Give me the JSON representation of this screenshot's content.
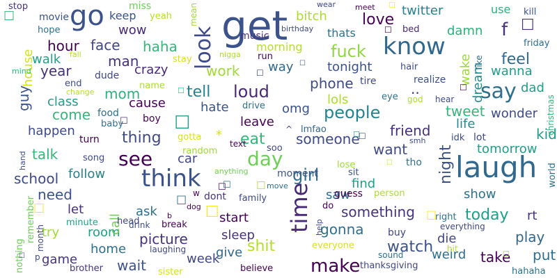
{
  "words": [
    {
      "text": "get",
      "color": "#3b528b"
    },
    {
      "text": "laugh",
      "color": "#31688e"
    },
    {
      "text": "go",
      "color": "#3b528b"
    },
    {
      "text": "know",
      "color": "#31688e"
    },
    {
      "text": "think",
      "color": "#3b528b"
    },
    {
      "text": "see",
      "color": "#440154"
    },
    {
      "text": "make",
      "color": "#440154"
    },
    {
      "text": "time",
      "color": "#482878"
    },
    {
      "text": "look",
      "color": "#3e4a89"
    },
    {
      "text": "people",
      "color": "#26828e"
    },
    {
      "text": "say",
      "color": "#2d708e"
    },
    {
      "text": "day",
      "color": "#6ece58"
    },
    {
      "text": "fuck",
      "color": "#8fd744"
    },
    {
      "text": "loud",
      "color": "#482878"
    },
    {
      "text": "shit",
      "color": "#b5de2b"
    },
    {
      "text": "girl",
      "color": "#2d708e"
    },
    {
      "text": "watch",
      "color": "#3b528b"
    },
    {
      "text": "night",
      "color": "#3b528b"
    },
    {
      "text": "tell",
      "color": "#26828e"
    },
    {
      "text": "thing",
      "color": "#3e4a89"
    },
    {
      "text": "today",
      "color": "#1f9e89"
    },
    {
      "text": "gonna",
      "color": "#2d708e"
    },
    {
      "text": "talk",
      "color": "#35b779"
    },
    {
      "text": "wait",
      "color": "#3b528b"
    },
    {
      "text": "feel",
      "color": "#31688e"
    },
    {
      "text": "love",
      "color": "#440154"
    },
    {
      "text": "school",
      "color": "#3e4a89"
    },
    {
      "text": "tweet",
      "color": "#35b779"
    },
    {
      "text": "something",
      "color": "#46327e"
    },
    {
      "text": "work",
      "color": "#a0da39"
    },
    {
      "text": "phone",
      "color": "#3e4a89"
    },
    {
      "text": "someone",
      "color": "#3e4a89"
    },
    {
      "text": "picture",
      "color": "#46327e"
    },
    {
      "text": "take",
      "color": "#440154"
    },
    {
      "text": "put",
      "color": "#2d708e"
    },
    {
      "text": "play",
      "color": "#31688e"
    },
    {
      "text": "friend",
      "color": "#46327e"
    },
    {
      "text": "want",
      "color": "#3e4a89"
    },
    {
      "text": "need",
      "color": "#3b528b"
    },
    {
      "text": "come",
      "color": "#35b779"
    },
    {
      "text": "guy",
      "color": "#3b528b"
    },
    {
      "text": "year",
      "color": "#46327e"
    },
    {
      "text": "mom",
      "color": "#2db27d"
    },
    {
      "text": "haha",
      "color": "#35b779"
    },
    {
      "text": "hour",
      "color": "#440154"
    },
    {
      "text": "face",
      "color": "#404688"
    },
    {
      "text": "man",
      "color": "#46327e"
    },
    {
      "text": "crazy",
      "color": "#482878"
    },
    {
      "text": "wow",
      "color": "#482878"
    },
    {
      "text": "bitch",
      "color": "#addc30"
    },
    {
      "text": "twitter",
      "color": "#26828e"
    },
    {
      "text": "damn",
      "color": "#2db27d"
    },
    {
      "text": "wake",
      "color": "#9bd93c"
    },
    {
      "text": "dream",
      "color": "#238a8d"
    },
    {
      "text": "wanna",
      "color": "#1f9e89"
    },
    {
      "text": "tonight",
      "color": "#3b528b"
    },
    {
      "text": "morning",
      "color": "#b5de2b"
    },
    {
      "text": "omg",
      "color": "#3b528b"
    },
    {
      "text": "hate",
      "color": "#3b528b"
    },
    {
      "text": "cause",
      "color": "#440154"
    },
    {
      "text": "leave",
      "color": "#440154"
    },
    {
      "text": "eat",
      "color": "#35b779"
    },
    {
      "text": "lols",
      "color": "#addc30"
    },
    {
      "text": "life",
      "color": "#238a8d"
    },
    {
      "text": "kid",
      "color": "#1f9e89"
    },
    {
      "text": "tomorrow",
      "color": "#1f9e89"
    },
    {
      "text": "wonder",
      "color": "#3e4a89"
    },
    {
      "text": "dad",
      "color": "#1f9e89"
    },
    {
      "text": "happen",
      "color": "#3e4a89"
    },
    {
      "text": "class",
      "color": "#1f9e89"
    },
    {
      "text": "walk",
      "color": "#1fa188"
    },
    {
      "text": "house",
      "color": "#d2e21b"
    },
    {
      "text": "find",
      "color": "#1f9e89"
    },
    {
      "text": "saw",
      "color": "#2d708e"
    },
    {
      "text": "start",
      "color": "#440154"
    },
    {
      "text": "sleep",
      "color": "#46327e"
    },
    {
      "text": "give",
      "color": "#31688e"
    },
    {
      "text": "die",
      "color": "#404688"
    },
    {
      "text": "show",
      "color": "#2d708e"
    },
    {
      "text": "rt",
      "color": "#46327e"
    },
    {
      "text": "room",
      "color": "#1fa188"
    },
    {
      "text": "try",
      "color": "#a0da39"
    },
    {
      "text": "let",
      "color": "#46327e"
    },
    {
      "text": "ask",
      "color": "#2d708e"
    },
    {
      "text": "call",
      "color": "#6ece58"
    },
    {
      "text": "follow",
      "color": "#26828e"
    },
    {
      "text": "home",
      "color": "#2d708e"
    },
    {
      "text": "week",
      "color": "#404688"
    },
    {
      "text": "game",
      "color": "#46327e"
    },
    {
      "text": "weird",
      "color": "#2d708e"
    },
    {
      "text": "car",
      "color": "#404688"
    },
    {
      "text": "way",
      "color": "#31688e"
    },
    {
      "text": "keep",
      "color": "#3b528b"
    },
    {
      "text": "movie",
      "color": "#3b528b"
    },
    {
      "text": "use",
      "color": "#2db27d"
    },
    {
      "text": "thats",
      "color": "#2d708e"
    },
    {
      "text": "music",
      "color": "#46327e"
    },
    {
      "text": "stop",
      "color": "#46327e"
    },
    {
      "text": "hope",
      "color": "#2d708e"
    },
    {
      "text": "miss",
      "color": "#6ece58"
    },
    {
      "text": "yeah",
      "color": "#b5de2b"
    },
    {
      "text": "mean",
      "color": "#a0da39"
    },
    {
      "text": "wear",
      "color": "#404688"
    },
    {
      "text": "meet",
      "color": "#440154"
    },
    {
      "text": "kill",
      "color": "#3b528b"
    },
    {
      "text": "bed",
      "color": "#482878"
    },
    {
      "text": "birthday",
      "color": "#3e4a89"
    },
    {
      "text": "friday",
      "color": "#2d708e"
    },
    {
      "text": "nigga",
      "color": "#addc30"
    },
    {
      "text": "run",
      "color": "#440154"
    },
    {
      "text": "stay",
      "color": "#d8e219"
    },
    {
      "text": "fall",
      "color": "#b5de2b"
    },
    {
      "text": "mind",
      "color": "#35b779"
    },
    {
      "text": "dude",
      "color": "#404688"
    },
    {
      "text": "end",
      "color": "#3e4a89"
    },
    {
      "text": "change",
      "color": "#b5de2b"
    },
    {
      "text": "name",
      "color": "#addc30"
    },
    {
      "text": "hair",
      "color": "#3e4a89"
    },
    {
      "text": "tire",
      "color": "#3e4a89"
    },
    {
      "text": "realize",
      "color": "#3b528b"
    },
    {
      "text": "like",
      "color": "#2d708e"
    },
    {
      "text": "eye",
      "color": "#2d708e"
    },
    {
      "text": "god",
      "color": "#addc30"
    },
    {
      "text": "hear",
      "color": "#3e4a89"
    },
    {
      "text": "christmas",
      "color": "#35b779"
    },
    {
      "text": "drive",
      "color": "#2d708e"
    },
    {
      "text": "food",
      "color": "#2d708e"
    },
    {
      "text": "baby",
      "color": "#2d708e"
    },
    {
      "text": "boy",
      "color": "#440154"
    },
    {
      "text": "turn",
      "color": "#440154"
    },
    {
      "text": "song",
      "color": "#3e4a89"
    },
    {
      "text": "gotta",
      "color": "#d8e219"
    },
    {
      "text": "random",
      "color": "#a0da39"
    },
    {
      "text": "text",
      "color": "#440154"
    },
    {
      "text": "soo",
      "color": "#404688"
    },
    {
      "text": "lmfao",
      "color": "#31688e"
    },
    {
      "text": "smh",
      "color": "#3e4a89"
    },
    {
      "text": "idk",
      "color": "#3e4a89"
    },
    {
      "text": "lot",
      "color": "#404688"
    },
    {
      "text": "sit",
      "color": "#3b528b"
    },
    {
      "text": "tho",
      "color": "#2d708e"
    },
    {
      "text": "lose",
      "color": "#a0da39"
    },
    {
      "text": "anything",
      "color": "#6ece58"
    },
    {
      "text": "moment",
      "color": "#3b528b"
    },
    {
      "text": "guess",
      "color": "#440154"
    },
    {
      "text": "person",
      "color": "#addc30"
    },
    {
      "text": "right",
      "color": "#2d708e"
    },
    {
      "text": "world",
      "color": "#2d708e"
    },
    {
      "text": "hand",
      "color": "#3e4a89"
    },
    {
      "text": "head",
      "color": "#404688"
    },
    {
      "text": "dog",
      "color": "#440154"
    },
    {
      "text": "dont",
      "color": "#46327e"
    },
    {
      "text": "family",
      "color": "#404688"
    },
    {
      "text": "move",
      "color": "#2d708e"
    },
    {
      "text": "do",
      "color": "#440154"
    },
    {
      "text": "remember",
      "color": "#6ece58"
    },
    {
      "text": "minute",
      "color": "#1fa188"
    },
    {
      "text": "month",
      "color": "#404688"
    },
    {
      "text": "drink",
      "color": "#3b528b"
    },
    {
      "text": "break",
      "color": "#440154"
    },
    {
      "text": "help",
      "color": "#404688"
    },
    {
      "text": "buy",
      "color": "#404688"
    },
    {
      "text": "everything",
      "color": "#404688"
    },
    {
      "text": "nothing",
      "color": "#6ece58"
    },
    {
      "text": "laughing",
      "color": "#404688"
    },
    {
      "text": "everyone",
      "color": "#d8e219"
    },
    {
      "text": "sound",
      "color": "#2d708e"
    },
    {
      "text": "hit",
      "color": "#b5de2b"
    },
    {
      "text": "brother",
      "color": "#46327e"
    },
    {
      "text": "sister",
      "color": "#d2e21b"
    },
    {
      "text": "believe",
      "color": "#440154"
    },
    {
      "text": "thanksgiving",
      "color": "#404688"
    },
    {
      "text": "hahaha",
      "color": "#2d708e"
    },
    {
      "text": "f",
      "color": "#46327e"
    },
    {
      "text": "b",
      "color": "#440154"
    },
    {
      "text": "w",
      "color": "#440154"
    },
    {
      "text": "p",
      "color": "#3e4a89"
    },
    {
      "text": "*",
      "color": "#d8e219"
    },
    {
      "text": "^",
      "color": "#404688"
    },
    {
      "text": "..",
      "color": "#46327e"
    },
    {
      "text": "☐",
      "color": "#46327e"
    },
    {
      "text": "☐",
      "color": "#35b779"
    },
    {
      "text": "☐",
      "color": "#fde725"
    },
    {
      "text": "☐",
      "color": "#440154"
    },
    {
      "text": "☐",
      "color": "#1fa188"
    },
    {
      "text": "☐",
      "color": "#46327e"
    },
    {
      "text": "☐",
      "color": "#fde725"
    },
    {
      "text": "☐",
      "color": "#3e4a89"
    },
    {
      "text": "☐",
      "color": "#35b779"
    },
    {
      "text": "☐",
      "color": "#1f9e89"
    },
    {
      "text": "☐",
      "color": "#440154"
    },
    {
      "text": "☐",
      "color": "#addc30"
    },
    {
      "text": "☐",
      "color": "#404688"
    },
    {
      "text": "☐",
      "color": "#2d708e"
    },
    {
      "text": "☐",
      "color": "#fde725"
    },
    {
      "text": "☐",
      "color": "#3e4a89"
    },
    {
      "text": "☐",
      "color": "#a0da39"
    },
    {
      "text": "☐",
      "color": "#440154"
    },
    {
      "text": "☐",
      "color": "#fde725"
    },
    {
      "text": "☐",
      "color": "#3b528b"
    },
    {
      "text": "☐",
      "color": "#2d708e"
    },
    {
      "text": "☐",
      "color": "#d8e219"
    }
  ]
}
